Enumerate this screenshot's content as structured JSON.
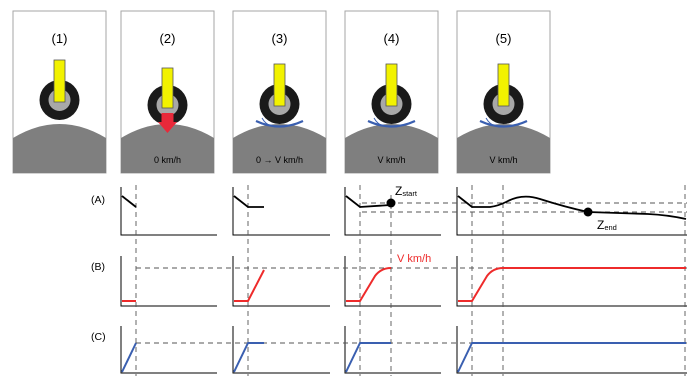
{
  "colors": {
    "ground": "#7f7f7f",
    "panel_border": "#a6a6a6",
    "tire": "#1a1a1a",
    "rim": "#a8a8a8",
    "marker": "#f2f200",
    "marker_border": "#555555",
    "arrow": "#e8293a",
    "deformation": "#3a5fb0",
    "curve_A": "#000000",
    "curve_B": "#ee2b2b",
    "curve_C": "#3a5fb0",
    "dashed": "#555555"
  },
  "panels": [
    {
      "label": "(1)",
      "speed": ""
    },
    {
      "label": "(2)",
      "speed": "0 km/h"
    },
    {
      "label": "(3)",
      "speed": "0 → V km/h"
    },
    {
      "label": "(4)",
      "speed": "V km/h"
    },
    {
      "label": "(5)",
      "speed": "V km/h"
    }
  ],
  "rows": [
    {
      "label": "(A)"
    },
    {
      "label": "(B)"
    },
    {
      "label": "(C)"
    }
  ],
  "annotations": {
    "z_start_main": "Z",
    "z_start_sub": "start",
    "z_end_main": "Z",
    "z_end_sub": "end",
    "velocity": "V km/h"
  }
}
